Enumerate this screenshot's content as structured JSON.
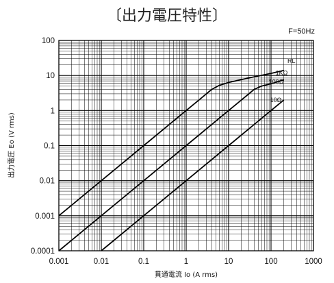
{
  "chart_data": {
    "type": "line",
    "title": "〔出力電圧特性〕",
    "annotation": "F=50Hz",
    "xlabel": "貫通電流 Io (A rms)",
    "ylabel": "出力電圧 Eo (V rms)",
    "x_scale": "log",
    "y_scale": "log",
    "xlim": [
      0.001,
      1000
    ],
    "ylim": [
      0.0001,
      100
    ],
    "x_ticks": [
      "0.001",
      "0.01",
      "0.1",
      "1",
      "10",
      "100",
      "1000"
    ],
    "y_ticks": [
      "100",
      "10",
      "1",
      "0.1",
      "0.01",
      "0.001",
      "0.0001"
    ],
    "grid": true,
    "legend_title": "RL",
    "series": [
      {
        "name": "1KΩ",
        "points": [
          [
            0.001,
            0.001
          ],
          [
            0.002,
            0.002
          ],
          [
            0.003,
            0.003
          ],
          [
            0.01,
            0.01
          ],
          [
            0.1,
            0.1
          ],
          [
            1,
            1
          ],
          [
            2,
            2
          ],
          [
            4,
            4
          ],
          [
            6,
            5.2
          ],
          [
            10,
            6.3
          ],
          [
            30,
            8.5
          ],
          [
            100,
            11.5
          ],
          [
            200,
            14
          ]
        ]
      },
      {
        "name": "100Ω",
        "points": [
          [
            0.001,
            0.0001
          ],
          [
            0.002,
            0.0002
          ],
          [
            0.003,
            0.0003
          ],
          [
            0.01,
            0.001
          ],
          [
            0.1,
            0.01
          ],
          [
            1,
            0.1
          ],
          [
            10,
            1
          ],
          [
            20,
            2
          ],
          [
            40,
            4
          ],
          [
            60,
            5
          ],
          [
            100,
            5.8
          ],
          [
            200,
            7.5
          ]
        ]
      },
      {
        "name": "10Ω",
        "points": [
          [
            0.01,
            0.0001
          ],
          [
            0.1,
            0.001
          ],
          [
            1,
            0.01
          ],
          [
            10,
            0.1
          ],
          [
            100,
            1
          ],
          [
            200,
            2
          ]
        ]
      }
    ]
  }
}
